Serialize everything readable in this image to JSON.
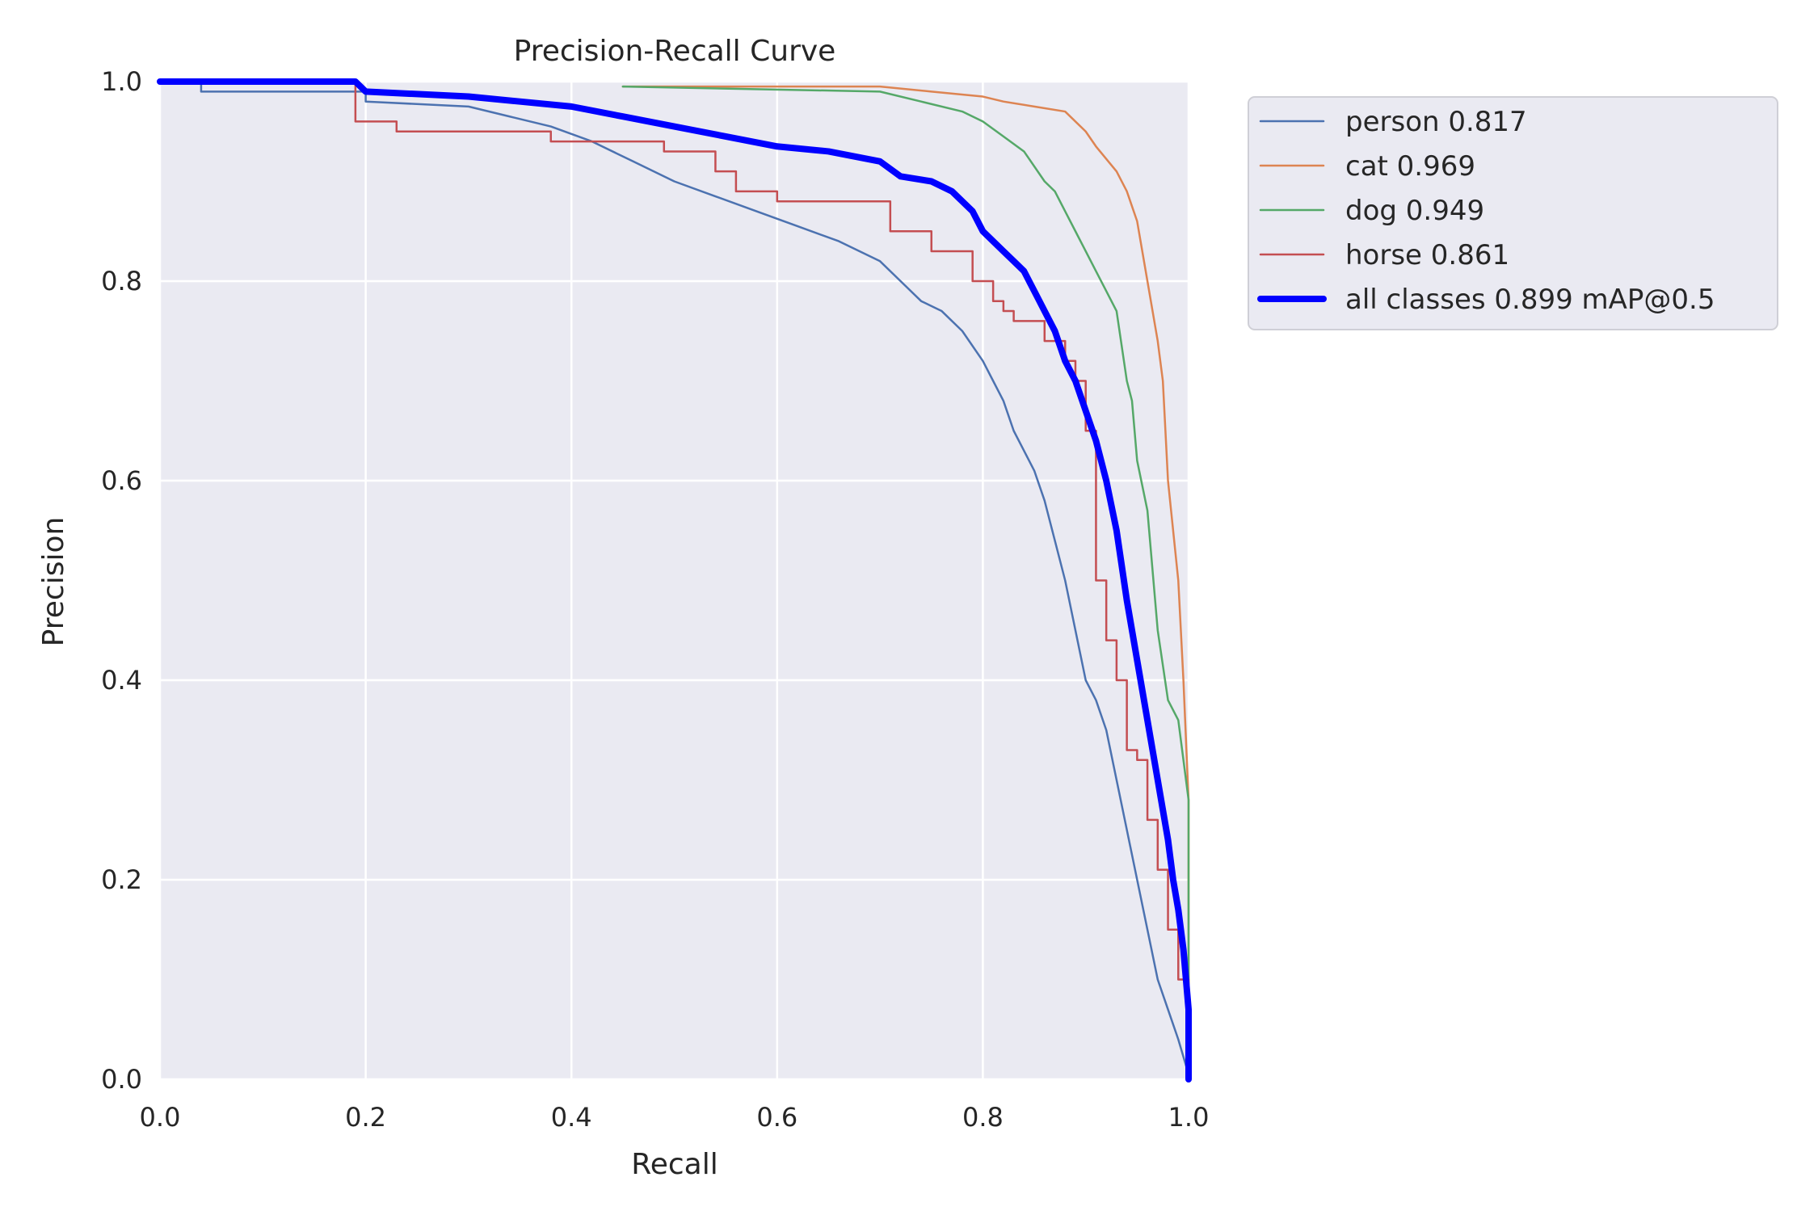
{
  "chart_data": {
    "type": "line",
    "title": "Precision-Recall Curve",
    "xlabel": "Recall",
    "ylabel": "Precision",
    "xlim": [
      0,
      1
    ],
    "ylim": [
      0,
      1
    ],
    "xticks": [
      "0.0",
      "0.2",
      "0.4",
      "0.6",
      "0.8",
      "1.0"
    ],
    "yticks": [
      "0.0",
      "0.2",
      "0.4",
      "0.6",
      "0.8",
      "1.0"
    ],
    "grid": true,
    "legend_position": "outside-right",
    "background": "#eaeaf2",
    "series": [
      {
        "name": "person 0.817",
        "color": "#4c72b0",
        "x": [
          0,
          0.04,
          0.04,
          0.2,
          0.2,
          0.3,
          0.34,
          0.38,
          0.42,
          0.46,
          0.5,
          0.54,
          0.58,
          0.62,
          0.66,
          0.7,
          0.72,
          0.74,
          0.76,
          0.78,
          0.8,
          0.81,
          0.82,
          0.83,
          0.84,
          0.85,
          0.86,
          0.87,
          0.88,
          0.89,
          0.9,
          0.91,
          0.92,
          0.93,
          0.94,
          0.95,
          0.96,
          0.97,
          0.98,
          0.99,
          1.0
        ],
        "y": [
          1.0,
          1.0,
          0.99,
          0.99,
          0.98,
          0.975,
          0.965,
          0.955,
          0.94,
          0.92,
          0.9,
          0.885,
          0.87,
          0.855,
          0.84,
          0.82,
          0.8,
          0.78,
          0.77,
          0.75,
          0.72,
          0.7,
          0.68,
          0.65,
          0.63,
          0.61,
          0.58,
          0.54,
          0.5,
          0.45,
          0.4,
          0.38,
          0.35,
          0.3,
          0.25,
          0.2,
          0.15,
          0.1,
          0.07,
          0.04,
          0.005
        ]
      },
      {
        "name": "cat 0.969",
        "color": "#dd8452",
        "x": [
          0.45,
          0.7,
          0.75,
          0.8,
          0.82,
          0.85,
          0.88,
          0.9,
          0.91,
          0.93,
          0.94,
          0.95,
          0.96,
          0.97,
          0.975,
          0.98,
          0.99,
          0.995,
          1.0,
          1.0
        ],
        "y": [
          0.995,
          0.995,
          0.99,
          0.985,
          0.98,
          0.975,
          0.97,
          0.95,
          0.935,
          0.91,
          0.89,
          0.86,
          0.8,
          0.74,
          0.7,
          0.6,
          0.5,
          0.4,
          0.28,
          0.0
        ]
      },
      {
        "name": "dog 0.949",
        "color": "#55a868",
        "x": [
          0.45,
          0.7,
          0.74,
          0.78,
          0.8,
          0.82,
          0.84,
          0.86,
          0.87,
          0.88,
          0.89,
          0.9,
          0.91,
          0.92,
          0.93,
          0.94,
          0.945,
          0.95,
          0.96,
          0.97,
          0.98,
          0.99,
          1.0,
          1.0
        ],
        "y": [
          0.995,
          0.99,
          0.98,
          0.97,
          0.96,
          0.945,
          0.93,
          0.9,
          0.89,
          0.87,
          0.85,
          0.83,
          0.81,
          0.79,
          0.77,
          0.7,
          0.68,
          0.62,
          0.57,
          0.45,
          0.38,
          0.36,
          0.28,
          0.0
        ]
      },
      {
        "name": "horse 0.861",
        "color": "#c44e52",
        "x": [
          0,
          0.19,
          0.19,
          0.23,
          0.23,
          0.38,
          0.38,
          0.49,
          0.49,
          0.54,
          0.54,
          0.56,
          0.56,
          0.6,
          0.6,
          0.71,
          0.71,
          0.75,
          0.75,
          0.79,
          0.79,
          0.81,
          0.81,
          0.82,
          0.82,
          0.83,
          0.83,
          0.86,
          0.86,
          0.88,
          0.88,
          0.89,
          0.89,
          0.9,
          0.9,
          0.91,
          0.91,
          0.92,
          0.92,
          0.93,
          0.93,
          0.94,
          0.94,
          0.95,
          0.95,
          0.96,
          0.96,
          0.97,
          0.97,
          0.98,
          0.98,
          0.99,
          0.99,
          1.0,
          1.0
        ],
        "y": [
          1.0,
          1.0,
          0.96,
          0.96,
          0.95,
          0.95,
          0.94,
          0.94,
          0.93,
          0.93,
          0.91,
          0.91,
          0.89,
          0.89,
          0.88,
          0.88,
          0.85,
          0.85,
          0.83,
          0.83,
          0.8,
          0.8,
          0.78,
          0.78,
          0.77,
          0.77,
          0.76,
          0.76,
          0.74,
          0.74,
          0.72,
          0.72,
          0.7,
          0.7,
          0.65,
          0.65,
          0.5,
          0.5,
          0.44,
          0.44,
          0.4,
          0.4,
          0.33,
          0.33,
          0.32,
          0.32,
          0.26,
          0.26,
          0.21,
          0.21,
          0.15,
          0.15,
          0.1,
          0.1,
          0.0
        ]
      },
      {
        "name": "all classes 0.899 mAP@0.5",
        "color": "#0000ff",
        "x": [
          0,
          0.19,
          0.2,
          0.3,
          0.35,
          0.4,
          0.45,
          0.5,
          0.55,
          0.6,
          0.65,
          0.7,
          0.72,
          0.75,
          0.77,
          0.79,
          0.8,
          0.81,
          0.82,
          0.83,
          0.84,
          0.85,
          0.86,
          0.87,
          0.88,
          0.89,
          0.9,
          0.91,
          0.92,
          0.93,
          0.94,
          0.95,
          0.96,
          0.97,
          0.975,
          0.98,
          0.985,
          0.99,
          0.995,
          1.0,
          1.0
        ],
        "y": [
          1.0,
          1.0,
          0.99,
          0.985,
          0.98,
          0.975,
          0.965,
          0.955,
          0.945,
          0.935,
          0.93,
          0.92,
          0.905,
          0.9,
          0.89,
          0.87,
          0.85,
          0.84,
          0.83,
          0.82,
          0.81,
          0.79,
          0.77,
          0.75,
          0.72,
          0.7,
          0.67,
          0.64,
          0.6,
          0.55,
          0.48,
          0.42,
          0.36,
          0.3,
          0.27,
          0.24,
          0.2,
          0.17,
          0.13,
          0.07,
          0.0
        ]
      }
    ]
  }
}
